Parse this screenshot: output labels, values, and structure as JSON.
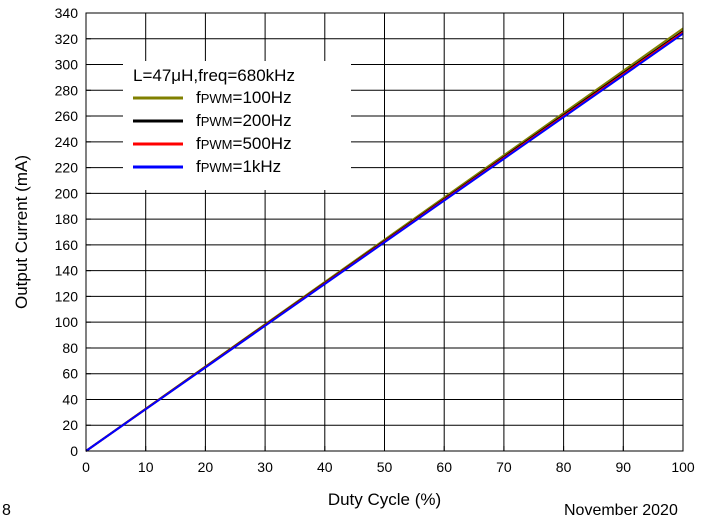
{
  "chart_data": {
    "type": "line",
    "xlabel": "Duty Cycle (%)",
    "ylabel": "Output Current (mA)",
    "xlim": [
      0,
      100
    ],
    "ylim": [
      0,
      340
    ],
    "xticks": [
      0,
      10,
      20,
      30,
      40,
      50,
      60,
      70,
      80,
      90,
      100
    ],
    "yticks": [
      0,
      20,
      40,
      60,
      80,
      100,
      120,
      140,
      160,
      180,
      200,
      220,
      240,
      260,
      280,
      300,
      320,
      340
    ],
    "grid": true,
    "legend": {
      "title": "L=47μH,freq=680kHz",
      "placement": "top-left"
    },
    "series": [
      {
        "name": "fPWM=100Hz",
        "name_main": "f",
        "name_sub": "PWM",
        "name_tail": "=100Hz",
        "color": "#808000",
        "x": [
          0,
          50,
          100
        ],
        "y": [
          0,
          164,
          328
        ]
      },
      {
        "name": "fPWM=200Hz",
        "name_main": "f",
        "name_sub": "PWM",
        "name_tail": "=200Hz",
        "color": "#000000",
        "x": [
          0,
          50,
          100
        ],
        "y": [
          0,
          163,
          326
        ]
      },
      {
        "name": "fPWM=500Hz",
        "name_main": "f",
        "name_sub": "PWM",
        "name_tail": "=500Hz",
        "color": "#ff0000",
        "x": [
          0,
          50,
          100
        ],
        "y": [
          0,
          162.5,
          325
        ]
      },
      {
        "name": "fPWM=1kHz",
        "name_main": "f",
        "name_sub": "PWM",
        "name_tail": "=1kHz",
        "color": "#0000ff",
        "x": [
          0,
          50,
          100
        ],
        "y": [
          0,
          162,
          324
        ]
      }
    ]
  },
  "footer": {
    "page_number": "8",
    "date": "November 2020"
  }
}
